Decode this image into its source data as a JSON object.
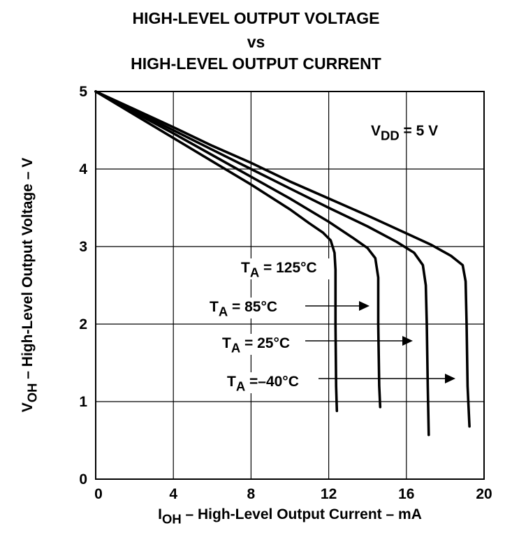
{
  "chart_data": {
    "type": "line",
    "title_lines": [
      "HIGH-LEVEL OUTPUT VOLTAGE",
      "vs",
      "HIGH-LEVEL OUTPUT CURRENT"
    ],
    "xlabel": {
      "main": "I",
      "sub": "OH",
      "rest": " – High-Level Output Current – mA"
    },
    "ylabel": {
      "main": "V",
      "sub": "OH",
      "rest": " – High-Level Output Voltage – V"
    },
    "xlim": [
      0,
      20
    ],
    "ylim": [
      0,
      5
    ],
    "x_ticks": [
      0,
      4,
      8,
      12,
      16,
      20
    ],
    "y_ticks": [
      0,
      1,
      2,
      3,
      4,
      5
    ],
    "grid": true,
    "condition": {
      "main": "V",
      "sub": "DD",
      "rest": " = 5 V"
    },
    "series": [
      {
        "name": "125°C",
        "label": {
          "main": "T",
          "sub": "A",
          "rest": " = 125°C"
        },
        "points": [
          [
            0,
            5
          ],
          [
            2,
            4.7
          ],
          [
            4,
            4.4
          ],
          [
            6,
            4.1
          ],
          [
            8,
            3.8
          ],
          [
            10,
            3.48
          ],
          [
            11,
            3.3
          ],
          [
            11.7,
            3.18
          ],
          [
            12.1,
            3.08
          ],
          [
            12.3,
            2.92
          ],
          [
            12.35,
            2.7
          ],
          [
            12.35,
            2
          ],
          [
            12.38,
            1.2
          ],
          [
            12.42,
            0.88
          ]
        ]
      },
      {
        "name": "85°C",
        "label": {
          "main": "T",
          "sub": "A",
          "rest": " = 85°C"
        },
        "points": [
          [
            0,
            5
          ],
          [
            2,
            4.73
          ],
          [
            4,
            4.46
          ],
          [
            6,
            4.18
          ],
          [
            8,
            3.9
          ],
          [
            10,
            3.62
          ],
          [
            12,
            3.32
          ],
          [
            13.2,
            3.12
          ],
          [
            14,
            2.98
          ],
          [
            14.4,
            2.85
          ],
          [
            14.55,
            2.6
          ],
          [
            14.55,
            2
          ],
          [
            14.6,
            1.2
          ],
          [
            14.65,
            0.93
          ]
        ]
      },
      {
        "name": "25°C",
        "label": {
          "main": "T",
          "sub": "A",
          "rest": " = 25°C"
        },
        "points": [
          [
            0,
            5
          ],
          [
            2,
            4.75
          ],
          [
            4,
            4.5
          ],
          [
            6,
            4.25
          ],
          [
            8,
            4
          ],
          [
            10,
            3.75
          ],
          [
            12,
            3.5
          ],
          [
            14,
            3.26
          ],
          [
            15.5,
            3.06
          ],
          [
            16.4,
            2.92
          ],
          [
            16.85,
            2.76
          ],
          [
            17,
            2.5
          ],
          [
            17.05,
            2
          ],
          [
            17.1,
            1.2
          ],
          [
            17.15,
            0.57
          ]
        ]
      },
      {
        "name": "−40°C",
        "label": {
          "main": "T",
          "sub": "A",
          "rest": " =–40°C"
        },
        "points": [
          [
            0,
            5
          ],
          [
            2,
            4.77
          ],
          [
            4,
            4.54
          ],
          [
            6,
            4.3
          ],
          [
            8,
            4.08
          ],
          [
            10,
            3.84
          ],
          [
            12,
            3.62
          ],
          [
            14,
            3.4
          ],
          [
            16,
            3.17
          ],
          [
            17.3,
            3.02
          ],
          [
            18.3,
            2.88
          ],
          [
            18.9,
            2.76
          ],
          [
            19.05,
            2.55
          ],
          [
            19.1,
            2
          ],
          [
            19.15,
            1.2
          ],
          [
            19.25,
            0.68
          ]
        ]
      }
    ]
  }
}
